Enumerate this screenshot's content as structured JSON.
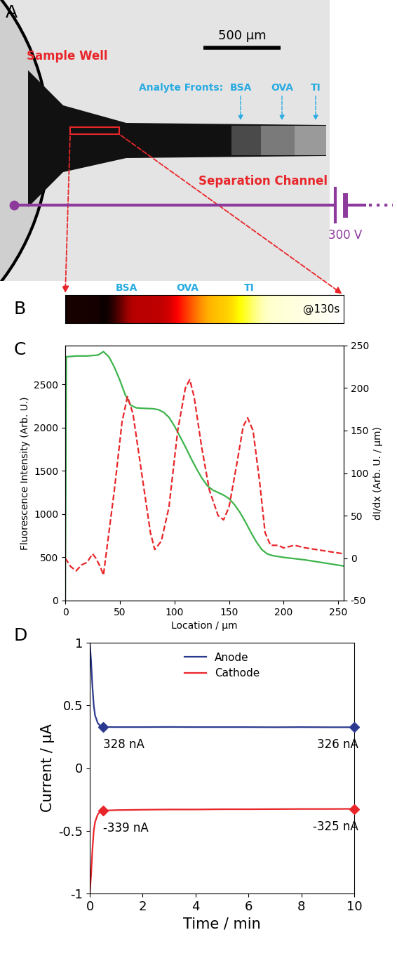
{
  "micrograph": {
    "panel": "A",
    "sample_well": "Sample Well",
    "scale_bar": "500 µm",
    "analyte_fronts": "Analyte Fronts:",
    "analytes": [
      "BSA",
      "OVA",
      "TI"
    ],
    "channel": "Separation Channel",
    "voltage": "300 V"
  },
  "profile_strip": {
    "panel": "B",
    "analytes": [
      "BSA",
      "OVA",
      "TI"
    ],
    "time": "@130s"
  },
  "chart_data": [
    {
      "type": "line",
      "panel": "C",
      "x_label": "Location / µm",
      "y_label": "Fluorescence Intensity (Arb. U.)",
      "y2_label": "dI/dx (Arb. U. / µm)",
      "xlim": [
        0,
        255
      ],
      "xticks": [
        0,
        50,
        100,
        150,
        200,
        250
      ],
      "ylim": [
        0,
        2950
      ],
      "yticks": [
        0,
        500,
        1000,
        1500,
        2000,
        2500
      ],
      "y2lim": [
        -50,
        250
      ],
      "y2ticks": [
        -50,
        0,
        50,
        100,
        150,
        200,
        250
      ],
      "series": [
        {
          "color": "#3cb44b",
          "line_style": "solid",
          "x": [
            0,
            1,
            10,
            20,
            30,
            35,
            40,
            45,
            50,
            55,
            60,
            65,
            70,
            80,
            85,
            90,
            95,
            100,
            105,
            110,
            115,
            120,
            125,
            130,
            135,
            140,
            145,
            150,
            155,
            160,
            165,
            170,
            175,
            180,
            185,
            190,
            200,
            210,
            220,
            230,
            240,
            255
          ],
          "values": [
            0,
            2820,
            2830,
            2830,
            2840,
            2880,
            2820,
            2700,
            2550,
            2380,
            2260,
            2230,
            2225,
            2220,
            2210,
            2180,
            2120,
            2020,
            1900,
            1780,
            1650,
            1530,
            1420,
            1330,
            1280,
            1250,
            1220,
            1180,
            1110,
            1020,
            910,
            790,
            680,
            590,
            540,
            520,
            500,
            485,
            470,
            450,
            430,
            400
          ]
        },
        {
          "color": "#e8262a",
          "line_style": "dashed",
          "axis": "y2",
          "x": [
            0,
            5,
            10,
            15,
            20,
            25,
            28,
            32,
            35,
            38,
            45,
            52,
            57,
            62,
            70,
            78,
            82,
            88,
            95,
            103,
            110,
            114,
            118,
            125,
            132,
            140,
            145,
            150,
            157,
            163,
            167,
            172,
            178,
            183,
            188,
            195,
            200,
            210,
            220,
            230,
            240,
            255
          ],
          "values": [
            0,
            -10,
            -15,
            -8,
            -5,
            5,
            0,
            -10,
            -20,
            10,
            80,
            160,
            190,
            170,
            100,
            30,
            10,
            20,
            60,
            150,
            200,
            210,
            190,
            130,
            80,
            50,
            45,
            60,
            110,
            155,
            165,
            150,
            90,
            30,
            15,
            15,
            12,
            15,
            12,
            10,
            8,
            5
          ]
        }
      ]
    },
    {
      "type": "line",
      "panel": "D",
      "x_label": "Time / min",
      "y_label": "Current / µA",
      "xlim": [
        0,
        10
      ],
      "xticks": [
        0,
        2,
        4,
        6,
        8,
        10
      ],
      "ylim": [
        -1,
        1
      ],
      "yticks": [
        -1,
        -0.5,
        0,
        0.5,
        1
      ],
      "legend": "upper center",
      "series": [
        {
          "name": "Anode",
          "color": "#2b3990",
          "line_style": "solid",
          "marker": "diamond",
          "x": [
            0,
            0.05,
            0.1,
            0.15,
            0.2,
            0.3,
            0.4,
            0.5,
            1,
            2,
            3,
            4,
            5,
            6,
            7,
            8,
            9,
            10
          ],
          "values": [
            1.0,
            0.85,
            0.65,
            0.5,
            0.42,
            0.36,
            0.335,
            0.328,
            0.327,
            0.327,
            0.328,
            0.327,
            0.327,
            0.327,
            0.326,
            0.327,
            0.326,
            0.326
          ],
          "annotations": [
            {
              "x": 0.5,
              "y": 0.328,
              "text": "328 nA"
            },
            {
              "x": 10,
              "y": 0.326,
              "text": "326 nA"
            }
          ]
        },
        {
          "name": "Cathode",
          "color": "#e8262a",
          "line_style": "solid",
          "marker": "diamond",
          "x": [
            0,
            0.05,
            0.1,
            0.15,
            0.2,
            0.3,
            0.4,
            0.5,
            1,
            2,
            3,
            4,
            5,
            6,
            7,
            8,
            9,
            10
          ],
          "values": [
            -1.0,
            -0.85,
            -0.65,
            -0.5,
            -0.43,
            -0.37,
            -0.345,
            -0.339,
            -0.335,
            -0.332,
            -0.33,
            -0.33,
            -0.328,
            -0.328,
            -0.327,
            -0.326,
            -0.326,
            -0.325
          ],
          "annotations": [
            {
              "x": 0.5,
              "y": -0.339,
              "text": "-339 nA"
            },
            {
              "x": 10,
              "y": -0.325,
              "text": "-325 nA"
            }
          ]
        }
      ]
    }
  ]
}
